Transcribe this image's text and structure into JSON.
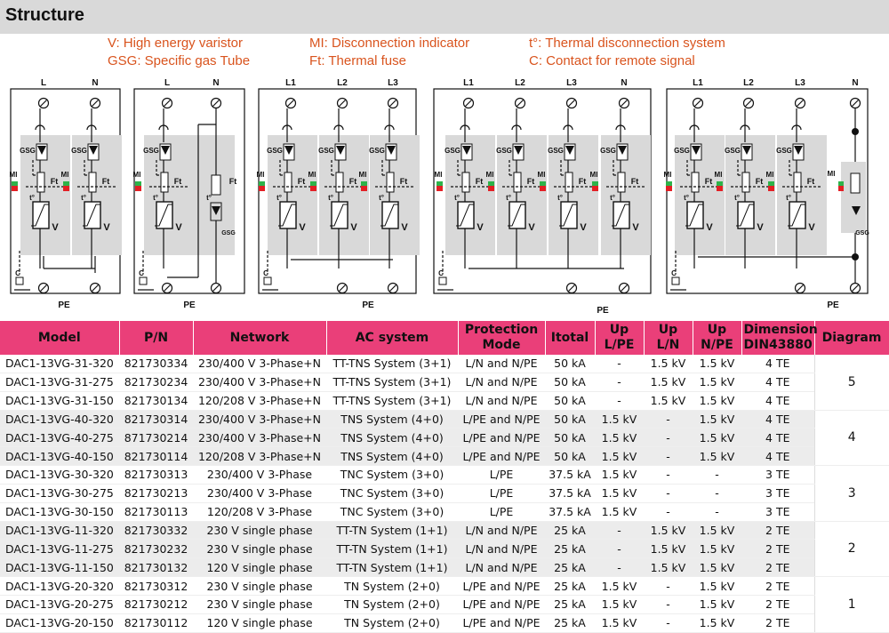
{
  "page": {
    "title": "Structure"
  },
  "legend": {
    "v": "V: High energy varistor",
    "gsg": "GSG: Specific gas Tube",
    "mi": "MI: Disconnection indicator",
    "ft": "Ft: Thermal fuse",
    "tdeg": "t°: Thermal disconnection system",
    "c": "C: Contact for remote signal"
  },
  "diagram_labels": {
    "gsg": "GSG",
    "mi": "MI",
    "ft": "Ft",
    "t": "t°",
    "v": "V",
    "pe": "PE",
    "c": "C",
    "l": "L",
    "n": "N",
    "l1": "L1",
    "l2": "L2",
    "l3": "L3"
  },
  "colors": {
    "header_bg": "#d9d9d9",
    "table_header": "#ea3f79",
    "legend_text": "#d9541e",
    "indicator_green": "#2db34a",
    "indicator_red": "#e31e24",
    "module_bg": "#d9d9d9"
  },
  "table": {
    "headers": [
      "Model",
      "P/N",
      "Network",
      "AC system",
      "Protection Mode",
      "Itotal",
      "Up L/PE",
      "Up L/N",
      "Up N/PE",
      "Dimension DIN43880",
      "Diagram"
    ],
    "rows": [
      [
        "DAC1-13VG-31-320",
        "821730334",
        "230/400 V 3-Phase+N",
        "TT-TNS System (3+1)",
        "L/N and N/PE",
        "50 kA",
        "-",
        "1.5 kV",
        "1.5 kV",
        "4 TE"
      ],
      [
        "DAC1-13VG-31-275",
        "821730234",
        "230/400 V 3-Phase+N",
        "TT-TNS System (3+1)",
        "L/N and N/PE",
        "50 kA",
        "-",
        "1.5 kV",
        "1.5 kV",
        "4 TE"
      ],
      [
        "DAC1-13VG-31-150",
        "821730134",
        "120/208 V 3-Phase+N",
        "TT-TNS System (3+1)",
        "L/N and N/PE",
        "50 kA",
        "-",
        "1.5 kV",
        "1.5 kV",
        "4 TE"
      ],
      [
        "DAC1-13VG-40-320",
        "821730314",
        "230/400 V 3-Phase+N",
        "TNS System (4+0)",
        "L/PE and N/PE",
        "50 kA",
        "1.5 kV",
        "-",
        "1.5 kV",
        "4 TE"
      ],
      [
        "DAC1-13VG-40-275",
        "871730214",
        "230/400 V 3-Phase+N",
        "TNS System (4+0)",
        "L/PE and N/PE",
        "50 kA",
        "1.5 kV",
        "-",
        "1.5 kV",
        "4 TE"
      ],
      [
        "DAC1-13VG-40-150",
        "821730114",
        "120/208 V 3-Phase+N",
        "TNS System (4+0)",
        "L/PE and N/PE",
        "50 kA",
        "1.5 kV",
        "-",
        "1.5 kV",
        "4 TE"
      ],
      [
        "DAC1-13VG-30-320",
        "821730313",
        "230/400 V 3-Phase",
        "TNC System (3+0)",
        "L/PE",
        "37.5 kA",
        "1.5 kV",
        "-",
        "-",
        "3 TE"
      ],
      [
        "DAC1-13VG-30-275",
        "821730213",
        "230/400 V 3-Phase",
        "TNC System (3+0)",
        "L/PE",
        "37.5 kA",
        "1.5 kV",
        "-",
        "-",
        "3 TE"
      ],
      [
        "DAC1-13VG-30-150",
        "821730113",
        "120/208 V 3-Phase",
        "TNC System (3+0)",
        "L/PE",
        "37.5 kA",
        "1.5 kV",
        "-",
        "-",
        "3 TE"
      ],
      [
        "DAC1-13VG-11-320",
        "821730332",
        "230 V single phase",
        "TT-TN System (1+1)",
        "L/N and N/PE",
        "25 kA",
        "-",
        "1.5 kV",
        "1.5 kV",
        "2 TE"
      ],
      [
        "DAC1-13VG-11-275",
        "821730232",
        "230 V single phase",
        "TT-TN System (1+1)",
        "L/N and N/PE",
        "25 kA",
        "-",
        "1.5 kV",
        "1.5 kV",
        "2 TE"
      ],
      [
        "DAC1-13VG-11-150",
        "821730132",
        "120 V single phase",
        "TT-TN System (1+1)",
        "L/N and N/PE",
        "25 kA",
        "-",
        "1.5 kV",
        "1.5 kV",
        "2 TE"
      ],
      [
        "DAC1-13VG-20-320",
        "821730312",
        "230 V single phase",
        "TN System (2+0)",
        "L/PE and N/PE",
        "25 kA",
        "1.5 kV",
        "-",
        "1.5 kV",
        "2 TE"
      ],
      [
        "DAC1-13VG-20-275",
        "821730212",
        "230 V single phase",
        "TN System (2+0)",
        "L/PE and N/PE",
        "25 kA",
        "1.5 kV",
        "-",
        "1.5 kV",
        "2 TE"
      ],
      [
        "DAC1-13VG-20-150",
        "821730112",
        "120 V single phase",
        "TN System (2+0)",
        "L/PE and N/PE",
        "25 kA",
        "1.5 kV",
        "-",
        "1.5 kV",
        "2 TE"
      ]
    ],
    "diagram_groups": [
      {
        "value": "5",
        "rows": 3
      },
      {
        "value": "4",
        "rows": 3
      },
      {
        "value": "3",
        "rows": 3
      },
      {
        "value": "2",
        "rows": 3
      },
      {
        "value": "1",
        "rows": 3
      }
    ]
  }
}
